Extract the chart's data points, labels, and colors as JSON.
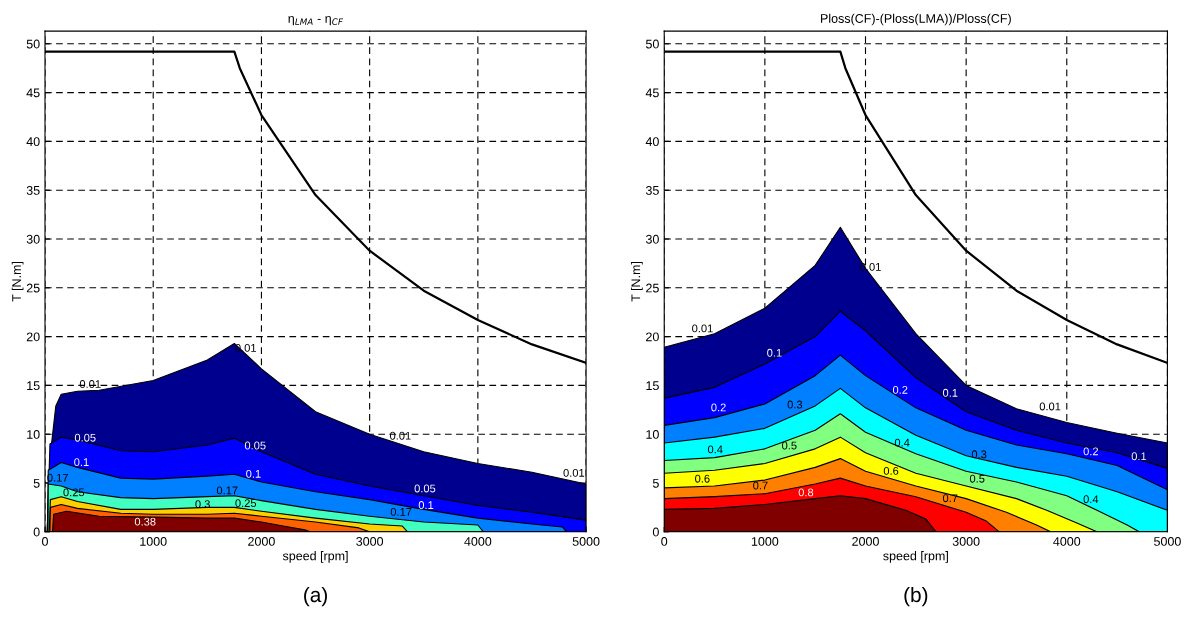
{
  "chart_data": [
    {
      "type": "area",
      "title": "η$_{LMA}$ - η$_{CF}$",
      "xlabel": "speed [rpm]",
      "ylabel": "T [N.m]",
      "xlim": [
        0,
        5000
      ],
      "ylim": [
        0,
        51.3
      ],
      "xticks": [
        0,
        1000,
        2000,
        3000,
        4000,
        5000
      ],
      "yticks": [
        0,
        5,
        10,
        15,
        20,
        25,
        30,
        35,
        40,
        45,
        50
      ],
      "grid": true,
      "series": [
        {
          "color": "#00008f",
          "x": [
            20,
            50,
            100,
            150,
            300,
            500,
            1000,
            1500,
            1750,
            2000,
            2500,
            3000,
            3500,
            4000,
            4500,
            5000
          ],
          "values": [
            0,
            8,
            12.9,
            14.1,
            14.4,
            14.5,
            15.5,
            17.6,
            19.3,
            16.7,
            12.3,
            10.0,
            8.2,
            7.0,
            6.1,
            4.9
          ]
        },
        {
          "color": "#0000ff",
          "x": [
            20,
            46,
            150,
            300,
            700,
            1000,
            1500,
            1750,
            2000,
            2500,
            3000,
            3500,
            4000,
            4500,
            5000
          ],
          "values": [
            0,
            9.0,
            9.7,
            9.4,
            8.3,
            8.2,
            8.9,
            9.6,
            8.2,
            5.9,
            4.7,
            3.7,
            2.7,
            2.0,
            1.2
          ]
        },
        {
          "color": "#0080ff",
          "x": [
            25,
            30,
            150,
            300,
            700,
            1000,
            1500,
            1750,
            2000,
            2500,
            3000,
            3500,
            4000,
            4500,
            4780,
            4820
          ],
          "values": [
            0,
            6.3,
            7.1,
            6.6,
            5.5,
            5.4,
            5.7,
            5.9,
            5.1,
            4.1,
            3.3,
            2.3,
            1.4,
            0.8,
            0.5,
            0
          ]
        },
        {
          "color": "#40ffc0",
          "x": [
            28,
            30,
            150,
            300,
            700,
            1000,
            1500,
            1750,
            2000,
            2500,
            3000,
            3500,
            4000,
            4050
          ],
          "values": [
            0,
            4.9,
            4.7,
            4.1,
            3.5,
            3.4,
            3.6,
            3.7,
            3.2,
            2.3,
            1.6,
            1.0,
            0.7,
            0
          ]
        },
        {
          "color": "#ffd000",
          "x": [
            40,
            50,
            150,
            300,
            700,
            1000,
            1500,
            1750,
            2000,
            2500,
            3000,
            3300,
            3350
          ],
          "values": [
            0,
            3.3,
            3.6,
            3.1,
            2.3,
            2.3,
            2.5,
            2.5,
            2.1,
            1.4,
            0.8,
            0.6,
            0
          ]
        },
        {
          "color": "#ff6000",
          "x": [
            45,
            50,
            150,
            300,
            700,
            1000,
            1500,
            1750,
            2000,
            2500,
            2900,
            3000
          ],
          "values": [
            0,
            2.5,
            2.8,
            2.4,
            1.9,
            1.8,
            1.8,
            1.9,
            1.6,
            1.0,
            0.4,
            0
          ]
        },
        {
          "color": "#800000",
          "x": [
            70,
            80,
            200,
            500,
            1000,
            1500,
            1750,
            2000,
            2200,
            2400,
            2450
          ],
          "values": [
            0,
            1.8,
            2.1,
            1.6,
            1.5,
            1.4,
            1.4,
            1.0,
            0.6,
            0.2,
            0
          ]
        },
        {
          "type": "line",
          "color": "#000000",
          "x": [
            0,
            1750,
            1800,
            2000,
            2500,
            3000,
            3500,
            4000,
            4500,
            5000
          ],
          "values": [
            49.2,
            49.2,
            47.5,
            42.7,
            34.5,
            28.8,
            24.7,
            21.7,
            19.2,
            17.3
          ]
        }
      ],
      "annotations": [
        {
          "text": "0.01",
          "x": 418,
          "y": 14.3
        },
        {
          "text": "0.01",
          "x": 1855,
          "y": 18.0
        },
        {
          "text": "0.05",
          "x": 372,
          "y": 8.8
        },
        {
          "text": "0.05",
          "x": 1943,
          "y": 8.0
        },
        {
          "text": "0.01",
          "x": 3284,
          "y": 9.0
        },
        {
          "text": "0.01",
          "x": 4887,
          "y": 5.2
        },
        {
          "text": "0.1",
          "x": 337,
          "y": 6.3
        },
        {
          "text": "0.1",
          "x": 1926,
          "y": 5.1
        },
        {
          "text": "0.05",
          "x": 3511,
          "y": 3.6
        },
        {
          "text": "0.1",
          "x": 3521,
          "y": 1.9
        },
        {
          "text": "0.17",
          "x": 117,
          "y": 4.7
        },
        {
          "text": "0.25",
          "x": 266,
          "y": 3.2
        },
        {
          "text": "0.17",
          "x": 1684,
          "y": 3.4
        },
        {
          "text": "0.3",
          "x": 1457,
          "y": 2.0
        },
        {
          "text": "0.25",
          "x": 1855,
          "y": 2.1
        },
        {
          "text": "0.38",
          "x": 926,
          "y": 0.2
        },
        {
          "text": "0.17",
          "x": 3291,
          "y": 1.2
        },
        "(a)"
      ]
    },
    {
      "type": "area",
      "title": "Ploss(CF)-(Ploss(LMA))/Ploss(CF)",
      "xlabel": "speed [rpm]",
      "ylabel": "T [N.m]",
      "xlim": [
        0,
        5000
      ],
      "ylim": [
        0,
        51.3
      ],
      "xticks": [
        0,
        1000,
        2000,
        3000,
        4000,
        5000
      ],
      "yticks": [
        0,
        5,
        10,
        15,
        20,
        25,
        30,
        35,
        40,
        45,
        50
      ],
      "grid": true,
      "series": [
        {
          "color": "#00008f",
          "x": [
            0,
            500,
            1000,
            1500,
            1750,
            2000,
            2500,
            3000,
            3500,
            4000,
            4500,
            5000
          ],
          "values": [
            18.9,
            20.3,
            22.9,
            27.3,
            31.2,
            27.0,
            20.3,
            15.0,
            12.6,
            11.2,
            10.1,
            9.1
          ]
        },
        {
          "color": "#0000ff",
          "x": [
            0,
            500,
            1000,
            1500,
            1750,
            2000,
            2500,
            3000,
            3500,
            4000,
            4500,
            5000
          ],
          "values": [
            13.7,
            14.8,
            17.2,
            20.0,
            22.6,
            20.6,
            15.8,
            12.3,
            10.4,
            9.1,
            8.1,
            6.5
          ]
        },
        {
          "color": "#0080ff",
          "x": [
            0,
            500,
            1000,
            1500,
            1750,
            2000,
            2500,
            3000,
            3500,
            4000,
            4500,
            5000
          ],
          "values": [
            10.9,
            11.7,
            13.1,
            16.0,
            18.1,
            16.0,
            12.7,
            10.4,
            8.9,
            8.0,
            6.8,
            4.3
          ]
        },
        {
          "color": "#00ffff",
          "x": [
            0,
            500,
            1000,
            1500,
            1750,
            2000,
            2500,
            3000,
            3500,
            4000,
            4500,
            5000
          ],
          "values": [
            9.1,
            9.7,
            10.6,
            12.9,
            14.7,
            12.7,
            9.9,
            7.8,
            6.6,
            5.7,
            4.1,
            2.2
          ]
        },
        {
          "color": "#80ff80",
          "x": [
            0,
            500,
            1000,
            1500,
            1750,
            2000,
            2500,
            3000,
            3500,
            4000,
            4300,
            4600,
            4720
          ],
          "values": [
            7.3,
            7.6,
            8.5,
            10.4,
            12.1,
            10.2,
            8.0,
            6.2,
            5.1,
            3.7,
            2.2,
            0.7,
            0
          ]
        },
        {
          "color": "#ffff00",
          "x": [
            0,
            500,
            1000,
            1500,
            1750,
            2000,
            2500,
            3000,
            3500,
            3800,
            4100,
            4300
          ],
          "values": [
            6.0,
            6.3,
            7.0,
            8.5,
            9.7,
            8.1,
            6.0,
            4.7,
            3.4,
            2.2,
            0.9,
            0
          ]
        },
        {
          "color": "#ff8000",
          "x": [
            0,
            500,
            1000,
            1500,
            1750,
            2000,
            2500,
            3000,
            3400,
            3700,
            3840
          ],
          "values": [
            4.5,
            4.7,
            5.3,
            6.6,
            7.5,
            6.2,
            4.7,
            3.4,
            2.0,
            0.7,
            0
          ]
        },
        {
          "color": "#ff0000",
          "x": [
            0,
            500,
            1000,
            1500,
            1750,
            2000,
            2500,
            3000,
            3200,
            3330
          ],
          "values": [
            3.4,
            3.6,
            3.9,
            4.9,
            5.5,
            4.7,
            3.6,
            2.0,
            1.1,
            0
          ]
        },
        {
          "color": "#800000",
          "x": [
            0,
            500,
            1000,
            1500,
            1750,
            2000,
            2400,
            2600,
            2700
          ],
          "values": [
            2.3,
            2.4,
            2.8,
            3.4,
            3.7,
            3.4,
            2.2,
            1.3,
            0
          ]
        },
        {
          "type": "line",
          "color": "#000000",
          "x": [
            0,
            1750,
            1800,
            2000,
            2500,
            3000,
            3500,
            4000,
            4500,
            5000
          ],
          "values": [
            49.2,
            49.2,
            47.5,
            42.7,
            34.5,
            28.8,
            24.7,
            21.7,
            19.2,
            17.3
          ]
        }
      ],
      "annotations": [
        {
          "text": "0.01",
          "x": 380,
          "y": 20.0
        },
        {
          "text": "0.1",
          "x": 1095,
          "y": 17.5
        },
        {
          "text": "0.01",
          "x": 2050,
          "y": 26.3
        },
        {
          "text": "0.2",
          "x": 540,
          "y": 11.9
        },
        {
          "text": "0.3",
          "x": 1298,
          "y": 12.2
        },
        {
          "text": "0.2",
          "x": 2345,
          "y": 13.7
        },
        {
          "text": "0.1",
          "x": 2842,
          "y": 13.4
        },
        {
          "text": "0.01",
          "x": 3834,
          "y": 12.0
        },
        {
          "text": "0.4",
          "x": 507,
          "y": 7.6
        },
        {
          "text": "0.5",
          "x": 1243,
          "y": 8.0
        },
        {
          "text": "0.4",
          "x": 2364,
          "y": 8.3
        },
        {
          "text": "0.3",
          "x": 3129,
          "y": 7.1
        },
        {
          "text": "0.2",
          "x": 4239,
          "y": 7.4
        },
        {
          "text": "0.1",
          "x": 4717,
          "y": 6.9
        },
        {
          "text": "0.6",
          "x": 379,
          "y": 4.6
        },
        {
          "text": "0.7",
          "x": 956,
          "y": 3.9
        },
        {
          "text": "0.8",
          "x": 1408,
          "y": 3.2
        },
        {
          "text": "0.6",
          "x": 2254,
          "y": 5.4
        },
        {
          "text": "0.5",
          "x": 3110,
          "y": 4.6
        },
        {
          "text": "0.4",
          "x": 4239,
          "y": 2.5
        },
        {
          "text": "0.7",
          "x": 2842,
          "y": 2.6
        },
        "(b)"
      ]
    }
  ]
}
